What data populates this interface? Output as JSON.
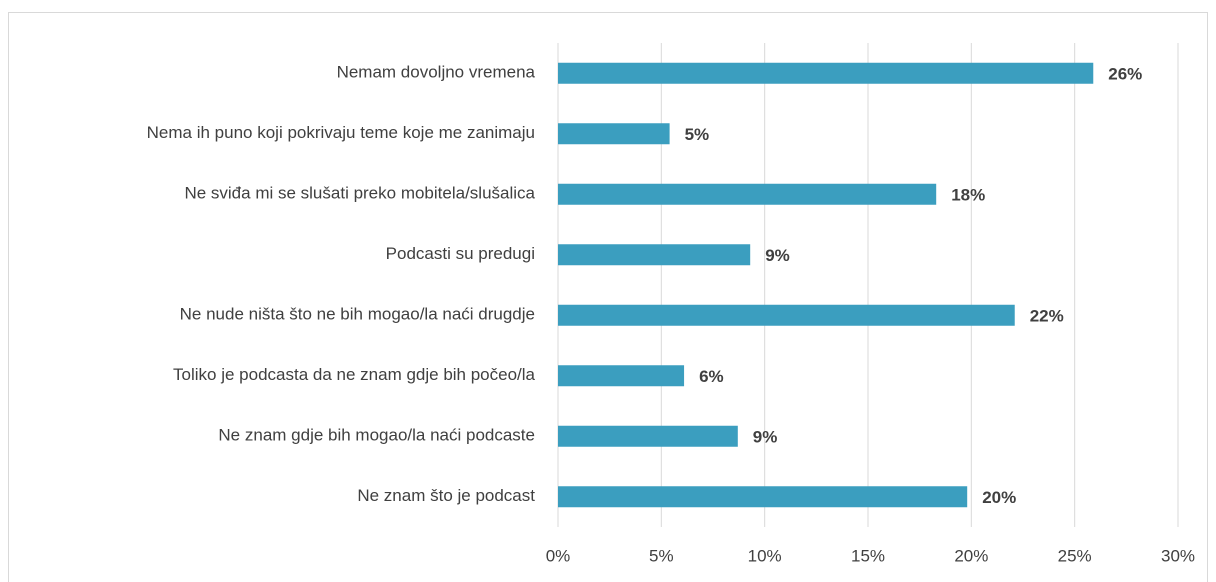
{
  "chart_data": {
    "type": "hbar",
    "categories": [
      "Nemam dovoljno vremena",
      "Nema ih puno koji pokrivaju teme koje me zanimaju",
      "Ne sviđa mi se slušati preko mobitela/slušalica",
      "Podcasti su predugi",
      "Ne nude ništa što ne bih mogao/la naći drugdje",
      "Toliko je podcasta da ne znam gdje bih počeo/la",
      "Ne znam gdje bih mogao/la naći podcaste",
      "Ne znam što je podcast"
    ],
    "values": [
      25.9,
      5.4,
      18.3,
      9.3,
      22.1,
      6.1,
      8.7,
      19.8
    ],
    "value_labels": [
      "26%",
      "5%",
      "18%",
      "9%",
      "22%",
      "6%",
      "9%",
      "20%"
    ],
    "color": "#3b9ebf",
    "xlim": [
      0,
      30
    ],
    "xticks": [
      {
        "value": 0,
        "label": "0%"
      },
      {
        "value": 5,
        "label": "5%"
      },
      {
        "value": 10,
        "label": "10%"
      },
      {
        "value": 15,
        "label": "15%"
      },
      {
        "value": 20,
        "label": "20%"
      },
      {
        "value": 25,
        "label": "25%"
      },
      {
        "value": 30,
        "label": "30%"
      }
    ],
    "grid": true
  }
}
